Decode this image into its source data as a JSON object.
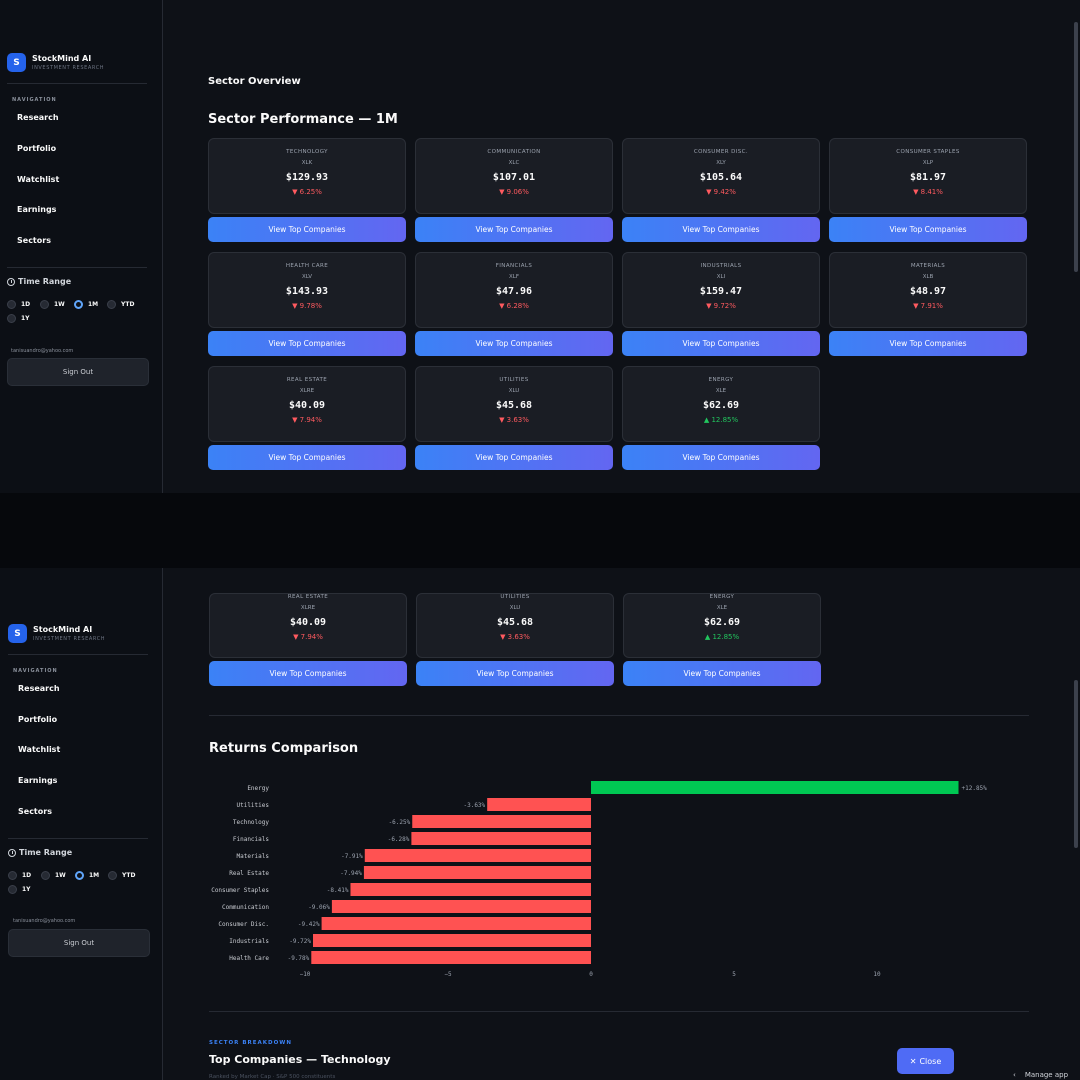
{
  "app": {
    "name": "StockMind AI",
    "tagline": "INVESTMENT RESEARCH",
    "logo_letter": "S",
    "accent": "#3b82f6",
    "negative_color": "#ff5a5f",
    "positive_color": "#22c55e"
  },
  "sidebar": {
    "nav_heading": "NAVIGATION",
    "nav": [
      "Research",
      "Portfolio",
      "Watchlist",
      "Earnings",
      "Sectors"
    ],
    "time_range": {
      "title": "Time Range",
      "options": [
        "1D",
        "1W",
        "1M",
        "YTD",
        "1Y"
      ],
      "selected": "1M"
    },
    "email": "tanisuandro@yahoo.com",
    "sign_out": "Sign Out"
  },
  "main": {
    "section_title": "Sector Overview",
    "performance_title": "Sector Performance — 1M",
    "button_label": "View Top Companies",
    "sectors": [
      {
        "name": "TECHNOLOGY",
        "ticker": "XLK",
        "price": "$129.93",
        "change": "▼ 6.25%",
        "dir": "down"
      },
      {
        "name": "COMMUNICATION",
        "ticker": "XLC",
        "price": "$107.01",
        "change": "▼ 9.06%",
        "dir": "down"
      },
      {
        "name": "CONSUMER DISC.",
        "ticker": "XLY",
        "price": "$105.64",
        "change": "▼ 9.42%",
        "dir": "down"
      },
      {
        "name": "CONSUMER STAPLES",
        "ticker": "XLP",
        "price": "$81.97",
        "change": "▼ 8.41%",
        "dir": "down"
      },
      {
        "name": "HEALTH CARE",
        "ticker": "XLV",
        "price": "$143.93",
        "change": "▼ 9.78%",
        "dir": "down"
      },
      {
        "name": "FINANCIALS",
        "ticker": "XLF",
        "price": "$47.96",
        "change": "▼ 6.28%",
        "dir": "down"
      },
      {
        "name": "INDUSTRIALS",
        "ticker": "XLI",
        "price": "$159.47",
        "change": "▼ 9.72%",
        "dir": "down"
      },
      {
        "name": "MATERIALS",
        "ticker": "XLB",
        "price": "$48.97",
        "change": "▼ 7.91%",
        "dir": "down"
      },
      {
        "name": "REAL ESTATE",
        "ticker": "XLRE",
        "price": "$40.09",
        "change": "▼ 7.94%",
        "dir": "down"
      },
      {
        "name": "UTILITIES",
        "ticker": "XLU",
        "price": "$45.68",
        "change": "▼ 3.63%",
        "dir": "down"
      },
      {
        "name": "ENERGY",
        "ticker": "XLE",
        "price": "$62.69",
        "change": "▲ 12.85%",
        "dir": "up"
      }
    ],
    "returns_title": "Returns Comparison",
    "breakdown_label": "SECTOR BREAKDOWN",
    "breakdown_title": "Top Companies — Technology",
    "breakdown_sub": "Ranked by Market Cap · S&P 500 constituents",
    "close_label": "Close",
    "manage_app": "Manage app"
  },
  "chart_data": {
    "type": "bar",
    "orientation": "horizontal",
    "categories": [
      "Energy",
      "Utilities",
      "Technology",
      "Financials",
      "Materials",
      "Real Estate",
      "Consumer Staples",
      "Communication",
      "Consumer Disc.",
      "Industrials",
      "Health Care"
    ],
    "values": [
      12.85,
      -3.63,
      -6.25,
      -6.28,
      -7.91,
      -7.94,
      -8.41,
      -9.06,
      -9.42,
      -9.72,
      -9.78
    ],
    "labels": [
      "+12.85%",
      "-3.63%",
      "-6.25%",
      "-6.28%",
      "-7.91%",
      "-7.94%",
      "-8.41%",
      "-9.06%",
      "-9.42%",
      "-9.72%",
      "-9.78%"
    ],
    "xlim": [
      -10,
      13
    ],
    "xticks": [
      "−10",
      "−5",
      "0",
      "5",
      "10"
    ],
    "xtick_values": [
      -10,
      -5,
      0,
      5,
      10
    ],
    "grid": false,
    "colors": {
      "positive": "#00c853",
      "negative": "#ff5252"
    }
  }
}
